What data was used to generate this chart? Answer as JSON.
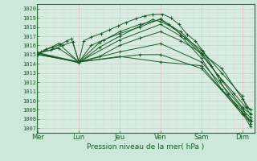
{
  "xlabel": "Pression niveau de la mer( hPa )",
  "bg_color": "#cce8d8",
  "plot_bg_color": "#d8ece0",
  "grid_color_h": "#b8d4c4",
  "grid_color_v": "#e8c4c4",
  "grid_color_v_minor": "#e8d0d0",
  "line_color": "#1a5c28",
  "spine_color": "#2a6b38",
  "ylim": [
    1006.5,
    1020.5
  ],
  "yticks": [
    1007,
    1008,
    1009,
    1010,
    1011,
    1012,
    1013,
    1014,
    1015,
    1016,
    1017,
    1018,
    1019,
    1020
  ],
  "xtick_labels": [
    "Mer",
    "Lun",
    "Jeu",
    "Ven",
    "Sam",
    "Dim"
  ],
  "xtick_positions": [
    0,
    1,
    2,
    3,
    4,
    5
  ],
  "xlim": [
    -0.02,
    5.3
  ],
  "num_minor_v": 4,
  "lines": [
    [
      0.0,
      1015.1,
      0.08,
      1015.3,
      0.18,
      1015.6,
      0.35,
      1015.8,
      0.55,
      1016.1,
      0.7,
      1016.5,
      0.82,
      1016.7,
      1.0,
      1014.2,
      1.12,
      1016.5,
      1.3,
      1016.9,
      1.55,
      1017.3,
      1.75,
      1017.7,
      1.95,
      1018.1,
      2.15,
      1018.5,
      2.4,
      1018.9,
      2.6,
      1019.2,
      2.8,
      1019.35,
      3.05,
      1019.4,
      3.25,
      1019.0,
      3.45,
      1018.3,
      3.65,
      1017.2,
      3.85,
      1016.5,
      4.05,
      1015.3,
      4.25,
      1013.8,
      4.45,
      1012.2,
      4.65,
      1010.7,
      4.85,
      1009.5,
      5.05,
      1008.5,
      5.15,
      1008.0,
      5.2,
      1007.5
    ],
    [
      0.0,
      1015.1,
      0.5,
      1016.2,
      1.0,
      1014.2,
      1.5,
      1016.3,
      2.0,
      1017.5,
      2.5,
      1018.3,
      3.0,
      1018.8,
      3.3,
      1018.0,
      3.6,
      1016.8,
      4.0,
      1015.0,
      4.4,
      1012.8,
      4.8,
      1010.8,
      5.1,
      1009.2,
      5.2,
      1008.5
    ],
    [
      0.0,
      1015.2,
      1.0,
      1014.2,
      2.0,
      1016.6,
      3.0,
      1018.3,
      3.5,
      1017.0,
      4.0,
      1014.6,
      4.5,
      1011.2,
      5.0,
      1009.0,
      5.2,
      1008.2
    ],
    [
      0.0,
      1015.0,
      1.0,
      1014.2,
      2.0,
      1015.3,
      3.0,
      1016.2,
      4.0,
      1014.2,
      5.0,
      1009.2,
      5.2,
      1008.6
    ],
    [
      0.0,
      1015.05,
      1.0,
      1014.2,
      2.0,
      1014.8,
      3.0,
      1014.2,
      4.0,
      1013.8,
      5.0,
      1008.5,
      5.2,
      1007.8
    ],
    [
      0.0,
      1015.15,
      0.5,
      1015.7,
      1.0,
      1014.2,
      1.5,
      1014.8,
      2.0,
      1016.0,
      2.5,
      1016.8,
      3.0,
      1017.5,
      3.5,
      1016.5,
      4.0,
      1015.2,
      4.5,
      1013.5,
      5.0,
      1010.2,
      5.2,
      1009.0
    ],
    [
      0.0,
      1015.2,
      0.3,
      1015.5,
      0.6,
      1016.0,
      0.85,
      1016.4,
      1.0,
      1014.2,
      1.3,
      1016.0,
      1.6,
      1016.6,
      2.0,
      1017.3,
      2.5,
      1018.0,
      3.0,
      1018.9,
      3.2,
      1018.3,
      3.5,
      1017.2,
      4.0,
      1015.5,
      4.5,
      1013.0,
      5.0,
      1010.5,
      5.1,
      1009.3,
      5.2,
      1009.0
    ],
    [
      0.0,
      1015.0,
      1.0,
      1014.2,
      2.5,
      1015.0,
      3.0,
      1015.0,
      4.0,
      1013.5,
      5.0,
      1008.7,
      5.2,
      1007.2
    ],
    [
      0.0,
      1015.15,
      1.0,
      1014.1,
      1.5,
      1015.8,
      2.0,
      1017.0,
      2.8,
      1018.8,
      3.0,
      1018.6,
      3.5,
      1017.5,
      4.0,
      1015.2,
      4.5,
      1012.2,
      5.0,
      1009.3,
      5.15,
      1008.0,
      5.22,
      1007.8
    ]
  ],
  "marker": "+",
  "markersize": 2.5,
  "linewidth": 0.7,
  "tick_fontsize": 5,
  "xlabel_fontsize": 6.5
}
